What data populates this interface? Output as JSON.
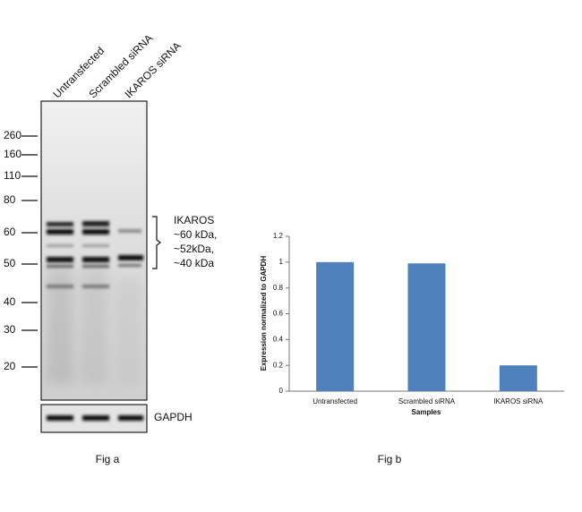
{
  "blot": {
    "lanes": [
      "Untransfected",
      "Scrambled siRNA",
      "IKAROS siRNA"
    ],
    "markers": [
      260,
      160,
      110,
      80,
      60,
      50,
      40,
      30,
      20
    ],
    "band_label": [
      "IKAROS",
      "~60 kDa,",
      "~52kDa,",
      "~40 kDa"
    ],
    "loading_control": "GAPDH",
    "caption": "Fig a"
  },
  "chart_data": {
    "type": "bar",
    "caption": "Fig b",
    "x_label": "Samples",
    "y_label": "Expression normalized to GAPDH",
    "categories": [
      "Untransfected",
      "Scrambled siRNA",
      "IKAROS siRNA"
    ],
    "values": [
      1,
      0.99,
      0.2
    ],
    "color": "#4f81bd",
    "ylim": [
      0,
      1.2
    ],
    "yticks": [
      0,
      0.2,
      0.4,
      0.6,
      0.8,
      1,
      1.2
    ]
  }
}
